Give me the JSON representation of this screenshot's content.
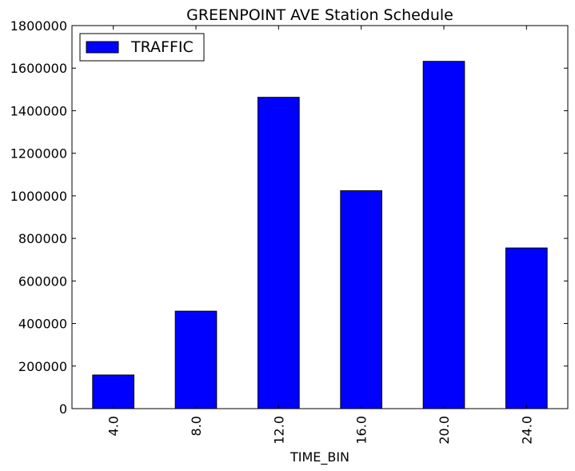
{
  "chart_data": {
    "type": "bar",
    "title": "GREENPOINT AVE Station Schedule",
    "xlabel": "TIME_BIN",
    "ylabel": "",
    "categories": [
      "4.0",
      "8.0",
      "12.0",
      "16.0",
      "20.0",
      "24.0"
    ],
    "series": [
      {
        "name": "TRAFFIC",
        "values": [
          158000,
          458000,
          1463000,
          1024000,
          1632000,
          755000
        ],
        "color": "#0000ff"
      }
    ],
    "ylim": [
      0,
      1800000
    ],
    "yticks": [
      "0",
      "200000",
      "400000",
      "600000",
      "800000",
      "1000000",
      "1200000",
      "1400000",
      "1600000",
      "1800000"
    ],
    "grid": false,
    "legend": "top-left"
  }
}
